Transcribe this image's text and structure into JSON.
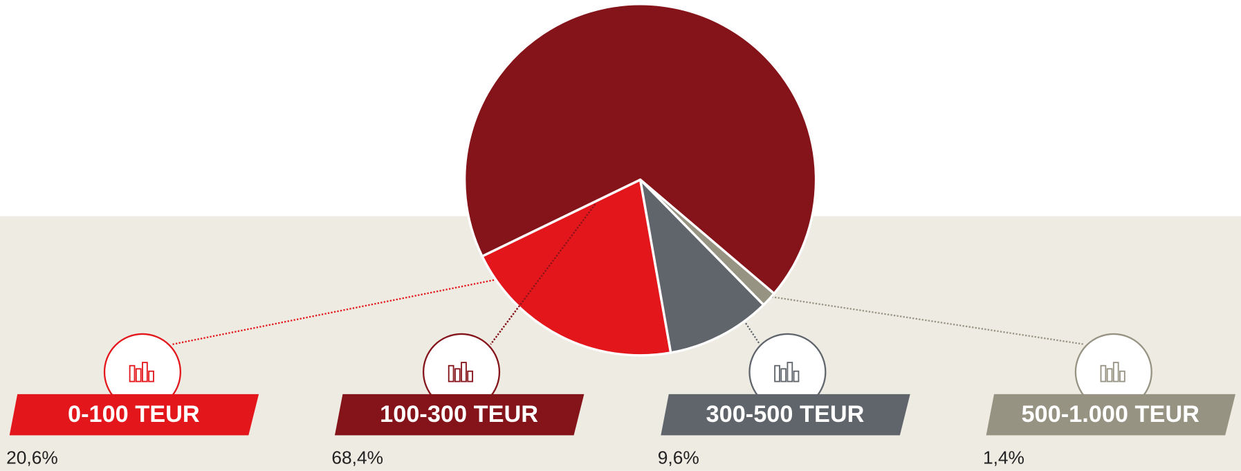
{
  "chart_data": {
    "type": "pie",
    "categories": [
      "0-100 TEUR",
      "100-300 TEUR",
      "300-500 TEUR",
      "500-1.000 TEUR"
    ],
    "values": [
      20.6,
      68.4,
      9.6,
      1.4
    ],
    "value_labels": [
      "20,6%",
      "68,4%",
      "9,6%",
      "1,4%"
    ],
    "colors": [
      "#e3161b",
      "#85141a",
      "#60656c",
      "#979382"
    ]
  }
}
